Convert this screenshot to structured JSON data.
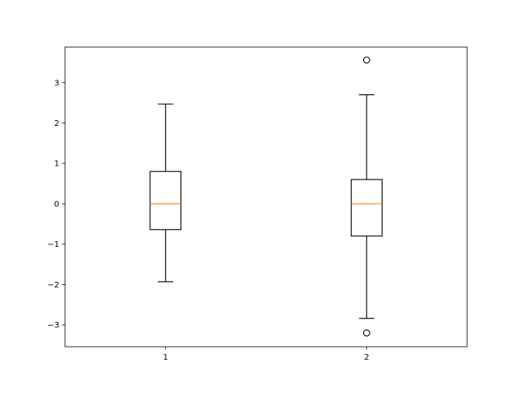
{
  "chart_data": {
    "type": "boxplot",
    "title": "",
    "xlabel": "",
    "ylabel": "",
    "categories": [
      "1",
      "2"
    ],
    "boxes": [
      {
        "whisker_low": -1.93,
        "q1": -0.64,
        "median": 0.0,
        "q3": 0.8,
        "whisker_high": 2.47,
        "outliers": []
      },
      {
        "whisker_low": -2.84,
        "q1": -0.8,
        "median": 0.0,
        "q3": 0.6,
        "whisker_high": 2.7,
        "outliers": [
          3.56,
          -3.2
        ]
      }
    ],
    "xlim": [
      0.5,
      2.5
    ],
    "ylim": [
      -3.54,
      3.88
    ],
    "yticks": [
      "−3",
      "−2",
      "−1",
      "0",
      "1",
      "2",
      "3"
    ],
    "ytick_values": [
      -3,
      -2,
      -1,
      0,
      1,
      2,
      3
    ],
    "grid": false,
    "colors": {
      "box": "#000000",
      "median": "#ff7f0e"
    }
  }
}
